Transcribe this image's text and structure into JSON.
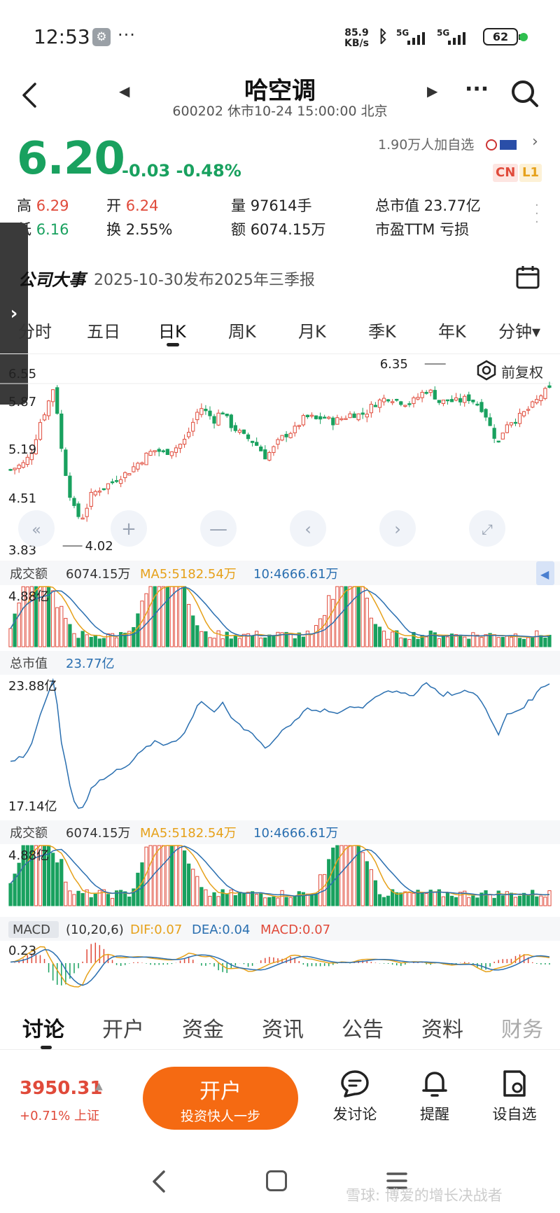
{
  "status": {
    "time": "12:53",
    "dots": "···",
    "speed_value": "85.9",
    "speed_unit": "KB/s",
    "sig1": "5G",
    "sig2": "5G",
    "battery": "62"
  },
  "header": {
    "title": "哈空调",
    "subtitle": "600202 休市10-24 15:00:00 北京"
  },
  "quote": {
    "price": "6.20",
    "change": "-0.03 -0.48%",
    "followers": "1.90万人加自选",
    "badge_cn": "CN",
    "badge_l1": "L1",
    "stats": {
      "high_label": "高",
      "high": "6.29",
      "open_label": "开",
      "open": "6.24",
      "volume_label": "量",
      "volume": "97614手",
      "mktcap_label": "总市值",
      "mktcap": "23.77亿",
      "low_label": "低",
      "low": "6.16",
      "turnover_label": "换",
      "turnover": "2.55%",
      "amount_label": "额",
      "amount": "6074.15万",
      "pe_label": "市盈TTM",
      "pe": "亏损"
    }
  },
  "events": {
    "label": "公司大事",
    "text": "2025-10-30发布2025年三季报"
  },
  "period_tabs": [
    "分时",
    "五日",
    "日K",
    "周K",
    "月K",
    "季K",
    "年K",
    "分钟▾"
  ],
  "chart_labels": {
    "fuquan": "前复权",
    "volume_title": "成交额",
    "volume_value": "6074.15万",
    "volume_ma5": "MA5:5182.54万",
    "volume_ma10": "10:4666.61万",
    "mktcap_title": "总市值",
    "mktcap_value": "23.77亿",
    "macd_title": "MACD",
    "macd_params": "(10,20,6)",
    "macd_dif": "DIF:0.07",
    "macd_dea": "DEA:0.04",
    "macd_macd": "MACD:0.07"
  },
  "chart_data": [
    {
      "type": "candlestick",
      "yticks": [
        "6.55",
        "5.87",
        "5.19",
        "4.51",
        "3.83"
      ],
      "ylim": [
        3.83,
        6.55
      ],
      "annotations": [
        {
          "label": "6.35",
          "value": 6.35
        },
        {
          "label": "4.02",
          "value": 4.02
        }
      ],
      "close_trend": [
        5.0,
        5.05,
        5.1,
        5.3,
        5.7,
        5.95,
        6.28,
        5.3,
        4.7,
        4.3,
        4.3,
        4.6,
        4.7,
        4.75,
        4.82,
        4.9,
        4.95,
        5.05,
        5.15,
        5.25,
        5.3,
        5.25,
        5.3,
        5.35,
        5.45,
        5.7,
        5.95,
        5.85,
        5.75,
        5.9,
        5.7,
        5.6,
        5.5,
        5.45,
        5.35,
        5.2,
        5.3,
        5.45,
        5.55,
        5.6,
        5.75,
        5.8,
        5.75,
        5.8,
        5.72,
        5.75,
        5.8,
        5.85,
        5.82,
        5.88,
        6.0,
        6.05,
        6.1,
        6.05,
        6.02,
        6.0,
        6.1,
        6.2,
        6.15,
        6.0,
        6.05,
        6.02,
        6.05,
        6.08,
        6.0,
        5.9,
        5.6,
        5.4,
        5.7,
        5.75,
        5.8,
        5.9,
        6.0,
        6.15,
        6.2
      ]
    },
    {
      "type": "bar",
      "title": "成交额",
      "yticks": [
        "4.88亿"
      ],
      "ymax": 4.88
    },
    {
      "type": "line",
      "title": "总市值",
      "yticks": [
        "23.88亿",
        "17.14亿"
      ],
      "ylim": [
        17.14,
        23.88
      ]
    },
    {
      "type": "bar",
      "title": "MACD",
      "yticks": [
        "0.23"
      ]
    }
  ],
  "bottom_tabs": [
    "讨论",
    "开户",
    "资金",
    "资讯",
    "公告",
    "资料",
    "财务"
  ],
  "action_bar": {
    "index_value": "3950.31",
    "index_change": "+0.71% 上证",
    "open_btn_title": "开户",
    "open_btn_sub": "投资快人一步",
    "discuss": "发讨论",
    "remind": "提醒",
    "watchlist": "设自选"
  },
  "watermark": "雪球: 博爱的增长决战者",
  "colors": {
    "up": "#e04a3a",
    "down": "#19a15f",
    "ma5": "#e6a11a",
    "ma10": "#2a6fb0",
    "accent": "#f56a12"
  }
}
